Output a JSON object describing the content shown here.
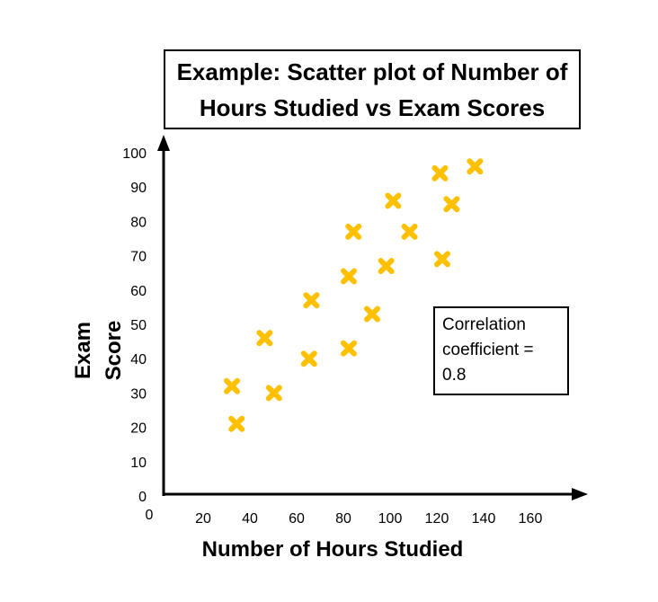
{
  "chart_data": {
    "type": "scatter",
    "title": "Example: Scatter plot of Number of Hours Studied vs Exam Scores",
    "xlabel": "Number of Hours Studied",
    "ylabel": "Exam\nScore",
    "xlim": [
      0,
      160
    ],
    "ylim": [
      0,
      100
    ],
    "x_ticks": [
      "0",
      "20",
      "40",
      "60",
      "80",
      "100",
      "120",
      "140",
      "160"
    ],
    "y_ticks": [
      "0",
      "10",
      "20",
      "30",
      "40",
      "50",
      "60",
      "70",
      "80",
      "90",
      "100"
    ],
    "marker": "x",
    "marker_color": "#FFC000",
    "grid": false,
    "annotation": "Correlation\ncoefficient =\n0.8",
    "points": [
      {
        "x": 30,
        "y": 32
      },
      {
        "x": 32,
        "y": 21
      },
      {
        "x": 44,
        "y": 46
      },
      {
        "x": 48,
        "y": 30
      },
      {
        "x": 63,
        "y": 40
      },
      {
        "x": 64,
        "y": 57
      },
      {
        "x": 80,
        "y": 64
      },
      {
        "x": 80,
        "y": 43
      },
      {
        "x": 82,
        "y": 77
      },
      {
        "x": 90,
        "y": 53
      },
      {
        "x": 96,
        "y": 67
      },
      {
        "x": 99,
        "y": 86
      },
      {
        "x": 106,
        "y": 77
      },
      {
        "x": 119,
        "y": 94
      },
      {
        "x": 120,
        "y": 69
      },
      {
        "x": 124,
        "y": 85
      },
      {
        "x": 134,
        "y": 96
      }
    ]
  }
}
